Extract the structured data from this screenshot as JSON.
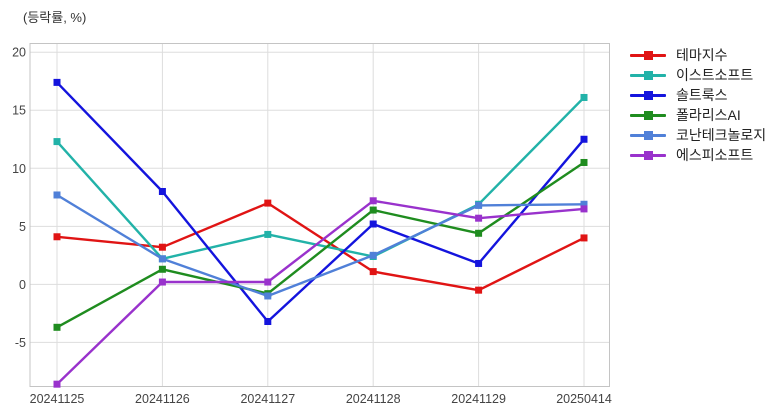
{
  "chart_data": {
    "type": "line",
    "title": "(등락률, %)",
    "categories": [
      "20241125",
      "20241126",
      "20241127",
      "20241128",
      "20241129",
      "20250414"
    ],
    "series": [
      {
        "name": "테마지수",
        "color": "#e01414",
        "values": [
          4.1,
          3.2,
          7.0,
          1.1,
          -0.5,
          4.0
        ]
      },
      {
        "name": "이스트소프트",
        "color": "#22b2a8",
        "values": [
          12.3,
          2.2,
          4.3,
          2.4,
          6.9,
          16.1
        ]
      },
      {
        "name": "솔트룩스",
        "color": "#1414dd",
        "values": [
          17.4,
          8.0,
          -3.2,
          5.2,
          1.8,
          12.5
        ]
      },
      {
        "name": "폴라리스AI",
        "color": "#1f8c1f",
        "values": [
          -3.7,
          1.3,
          -0.8,
          6.4,
          4.4,
          10.5
        ]
      },
      {
        "name": "코난테크놀로지",
        "color": "#5080d8",
        "values": [
          7.7,
          2.2,
          -1.0,
          2.5,
          6.8,
          6.9
        ]
      },
      {
        "name": "에스피소프트",
        "color": "#9932cc",
        "values": [
          -8.6,
          0.2,
          0.2,
          7.2,
          5.7,
          6.5
        ]
      }
    ],
    "y_ticks": [
      20,
      15,
      10,
      5,
      0,
      -5
    ],
    "ylim": [
      -8.8,
      20.75
    ],
    "grid": true,
    "legend_position": "right",
    "marker": "square",
    "grid_color": "#dddddd",
    "border_color": "#c4c4c4",
    "tick_label_color": "#444444"
  }
}
